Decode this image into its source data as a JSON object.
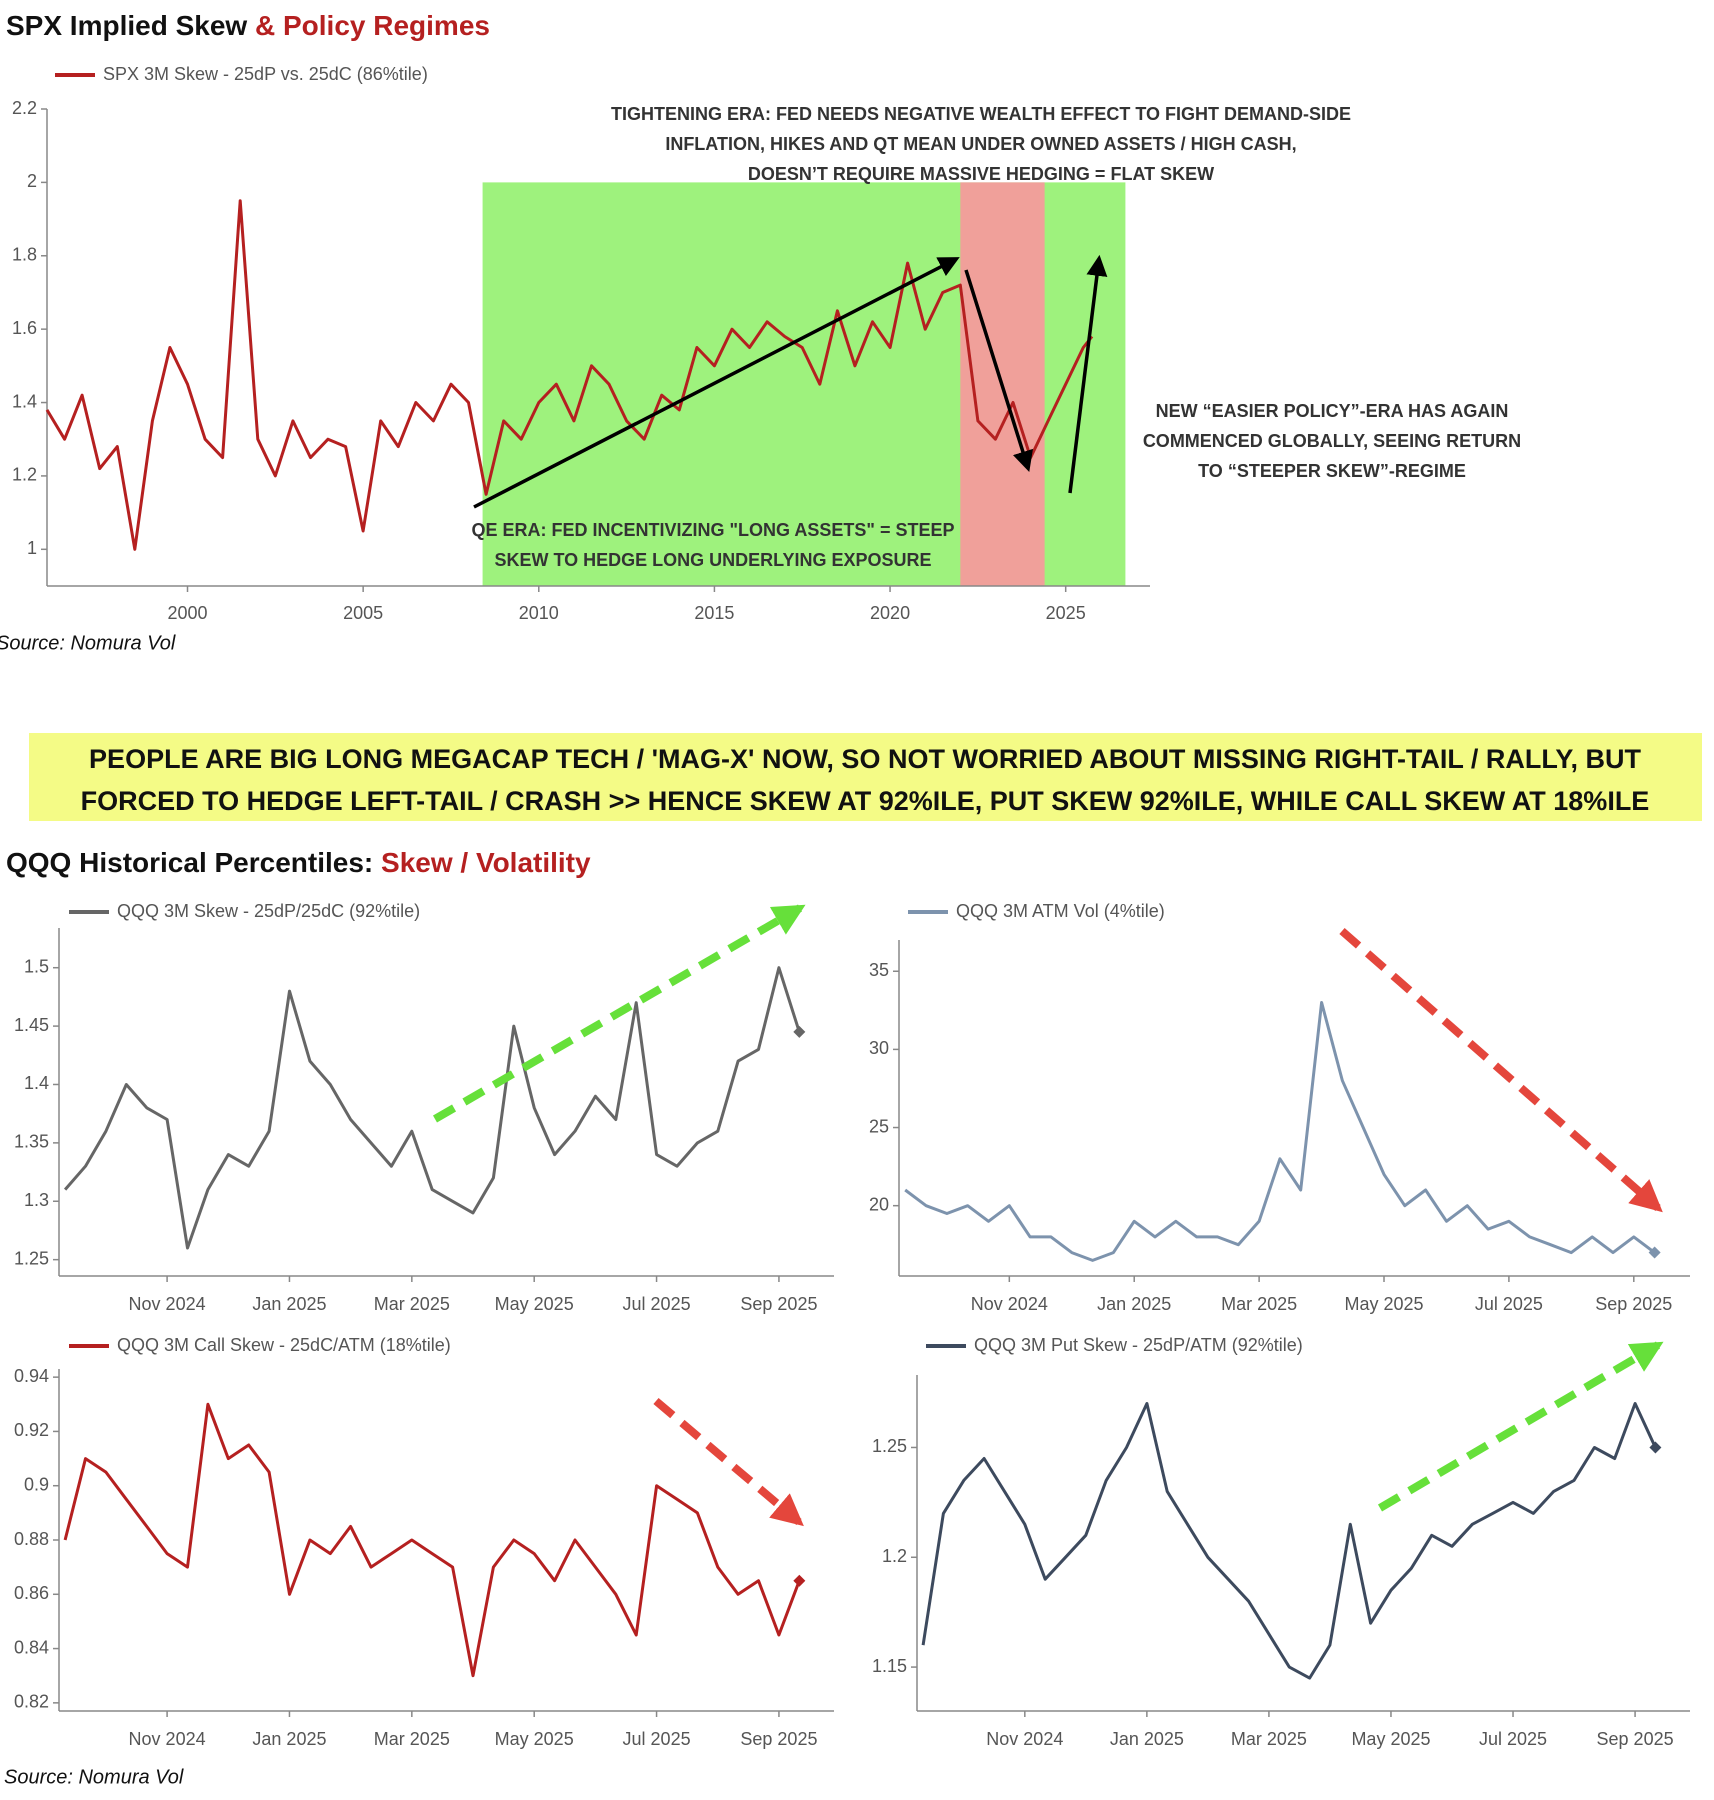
{
  "chart_data": [
    {
      "type": "line",
      "title": [
        "SPX Implied Skew",
        "& Policy Regimes"
      ],
      "xlim": [
        1996,
        2027.4
      ],
      "xticks": [
        2000,
        2005,
        2010,
        2015,
        2020,
        2025
      ],
      "ylim": [
        0.9,
        2.2
      ],
      "yticks": [
        1,
        1.2,
        1.4,
        1.6,
        1.8,
        2,
        2.2
      ],
      "regions": [
        {
          "start": 2008.4,
          "end": 2026.7,
          "top": 2,
          "color": "#9ef27d"
        },
        {
          "start": 2022.0,
          "end": 2024.4,
          "top": 2,
          "color": "#f0a09a"
        }
      ],
      "x": [
        1996,
        1996.5,
        1997,
        1997.5,
        1998,
        1998.5,
        1999,
        1999.5,
        2000,
        2000.5,
        2001,
        2001.5,
        2002,
        2002.5,
        2003,
        2003.5,
        2004,
        2004.5,
        2005,
        2005.5,
        2006,
        2006.5,
        2007,
        2007.5,
        2008,
        2008.5,
        2009,
        2009.5,
        2010,
        2010.5,
        2011,
        2011.5,
        2012,
        2012.5,
        2013,
        2013.5,
        2014,
        2014.5,
        2015,
        2015.5,
        2016,
        2016.5,
        2017,
        2017.5,
        2018,
        2018.5,
        2019,
        2019.5,
        2020,
        2020.5,
        2021,
        2021.5,
        2022,
        2022.5,
        2023,
        2023.5,
        2024,
        2024.5,
        2025,
        2025.5,
        2025.75
      ],
      "series": [
        {
          "name": "SPX 3M Skew - 25dP vs. 25dC (86%tile)",
          "color": "#b52020",
          "values": [
            1.38,
            1.3,
            1.42,
            1.22,
            1.28,
            1.0,
            1.35,
            1.55,
            1.45,
            1.3,
            1.25,
            1.95,
            1.3,
            1.2,
            1.35,
            1.25,
            1.3,
            1.28,
            1.05,
            1.35,
            1.28,
            1.4,
            1.35,
            1.45,
            1.4,
            1.15,
            1.35,
            1.3,
            1.4,
            1.45,
            1.35,
            1.5,
            1.45,
            1.35,
            1.3,
            1.42,
            1.38,
            1.55,
            1.5,
            1.6,
            1.55,
            1.62,
            1.58,
            1.55,
            1.45,
            1.65,
            1.5,
            1.62,
            1.55,
            1.78,
            1.6,
            1.7,
            1.72,
            1.35,
            1.3,
            1.4,
            1.25,
            1.35,
            1.45,
            1.55,
            1.58
          ]
        }
      ],
      "annotations": [
        [
          "TIGHTENING ERA: FED NEEDS NEGATIVE WEALTH EFFECT TO FIGHT DEMAND-SIDE",
          "INFLATION, HIKES AND QT MEAN UNDER OWNED ASSETS / HIGH CASH,",
          "DOESN’T REQUIRE MASSIVE HEDGING = FLAT SKEW"
        ],
        [
          "QE ERA: FED INCENTIVIZING \"LONG ASSETS\" = STEEP",
          "SKEW TO HEDGE LONG UNDERLYING EXPOSURE"
        ],
        [
          "NEW “EASIER POLICY”-ERA HAS AGAIN",
          "COMMENCED GLOBALLY, SEEING RETURN",
          "TO “STEEPER SKEW”-REGIME"
        ]
      ]
    },
    {
      "type": "line",
      "categories": [
        null,
        null,
        null,
        null,
        null,
        "Nov 2024",
        null,
        null,
        null,
        null,
        null,
        "Jan 2025",
        null,
        null,
        null,
        null,
        null,
        "Mar 2025",
        null,
        null,
        null,
        null,
        null,
        "May 2025",
        null,
        null,
        null,
        null,
        null,
        "Jul 2025",
        null,
        null,
        null,
        null,
        null,
        "Sep 2025",
        null
      ],
      "ylim": [
        1.236,
        1.534
      ],
      "yticks": [
        1.25,
        1.3,
        1.35,
        1.4,
        1.45,
        1.5
      ],
      "series": [
        {
          "name": "QQQ 3M Skew - 25dP/25dC (92%tile)",
          "color": "#666666",
          "values": [
            1.31,
            1.33,
            1.36,
            1.4,
            1.38,
            1.37,
            1.26,
            1.31,
            1.34,
            1.33,
            1.36,
            1.48,
            1.42,
            1.4,
            1.37,
            1.35,
            1.33,
            1.36,
            1.31,
            1.3,
            1.29,
            1.32,
            1.45,
            1.38,
            1.34,
            1.36,
            1.39,
            1.37,
            1.47,
            1.34,
            1.33,
            1.35,
            1.36,
            1.42,
            1.43,
            1.5,
            1.445
          ]
        }
      ]
    },
    {
      "type": "line",
      "categories": [
        null,
        null,
        null,
        null,
        null,
        "Nov 2024",
        null,
        null,
        null,
        null,
        null,
        "Jan 2025",
        null,
        null,
        null,
        null,
        null,
        "Mar 2025",
        null,
        null,
        null,
        null,
        null,
        "May 2025",
        null,
        null,
        null,
        null,
        null,
        "Jul 2025",
        null,
        null,
        null,
        null,
        null,
        "Sep 2025",
        null
      ],
      "ylim": [
        15.5,
        37
      ],
      "yticks": [
        20,
        25,
        30,
        35
      ],
      "series": [
        {
          "name": "QQQ 3M ATM Vol (4%tile)",
          "color": "#7d93ad",
          "values": [
            21,
            20,
            19.5,
            20,
            19,
            20,
            18,
            18,
            17,
            16.5,
            17,
            19,
            18,
            19,
            18,
            18,
            17.5,
            19,
            23,
            21,
            33,
            28,
            25,
            22,
            20,
            21,
            19,
            20,
            18.5,
            19,
            18,
            17.5,
            17,
            18,
            17,
            18,
            17
          ]
        }
      ]
    },
    {
      "type": "line",
      "categories": [
        null,
        null,
        null,
        null,
        null,
        "Nov 2024",
        null,
        null,
        null,
        null,
        null,
        "Jan 2025",
        null,
        null,
        null,
        null,
        null,
        "Mar 2025",
        null,
        null,
        null,
        null,
        null,
        "May 2025",
        null,
        null,
        null,
        null,
        null,
        "Jul 2025",
        null,
        null,
        null,
        null,
        null,
        "Sep 2025",
        null
      ],
      "ylim": [
        0.817,
        0.943
      ],
      "yticks": [
        0.82,
        0.84,
        0.86,
        0.88,
        0.9,
        0.92,
        0.94
      ],
      "series": [
        {
          "name": "QQQ 3M Call Skew - 25dC/ATM (18%tile)",
          "color": "#b52020",
          "values": [
            0.88,
            0.91,
            0.905,
            0.895,
            0.885,
            0.875,
            0.87,
            0.93,
            0.91,
            0.915,
            0.905,
            0.86,
            0.88,
            0.875,
            0.885,
            0.87,
            0.875,
            0.88,
            0.875,
            0.87,
            0.83,
            0.87,
            0.88,
            0.875,
            0.865,
            0.88,
            0.87,
            0.86,
            0.845,
            0.9,
            0.895,
            0.89,
            0.87,
            0.86,
            0.865,
            0.845,
            0.865
          ]
        }
      ]
    },
    {
      "type": "line",
      "categories": [
        null,
        null,
        null,
        null,
        null,
        "Nov 2024",
        null,
        null,
        null,
        null,
        null,
        "Jan 2025",
        null,
        null,
        null,
        null,
        null,
        "Mar 2025",
        null,
        null,
        null,
        null,
        null,
        "May 2025",
        null,
        null,
        null,
        null,
        null,
        "Jul 2025",
        null,
        null,
        null,
        null,
        null,
        "Sep 2025",
        null
      ],
      "ylim": [
        1.13,
        1.283
      ],
      "yticks": [
        1.15,
        1.2,
        1.25
      ],
      "series": [
        {
          "name": "QQQ 3M Put Skew - 25dP/ATM (92%tile)",
          "color": "#3d4a5e",
          "values": [
            1.16,
            1.22,
            1.235,
            1.245,
            1.23,
            1.215,
            1.19,
            1.2,
            1.21,
            1.235,
            1.25,
            1.27,
            1.23,
            1.215,
            1.2,
            1.19,
            1.18,
            1.165,
            1.15,
            1.145,
            1.16,
            1.215,
            1.17,
            1.185,
            1.195,
            1.21,
            1.205,
            1.215,
            1.22,
            1.225,
            1.22,
            1.23,
            1.235,
            1.25,
            1.245,
            1.27,
            1.25
          ]
        }
      ]
    }
  ],
  "banner": [
    "PEOPLE ARE BIG LONG MEGACAP TECH / 'MAG-X' NOW, SO NOT WORRIED ABOUT MISSING RIGHT-TAIL / RALLY, BUT",
    "FORCED TO HEDGE LEFT-TAIL / CRASH >> HENCE SKEW AT 92%ILE, PUT SKEW 92%ILE, WHILE CALL SKEW AT 18%ILE"
  ],
  "qqq_title": [
    "QQQ Historical Percentiles:",
    "Skew / Volatility"
  ],
  "sources": [
    "Source: Nomura Vol",
    "Source: Nomura Vol"
  ]
}
